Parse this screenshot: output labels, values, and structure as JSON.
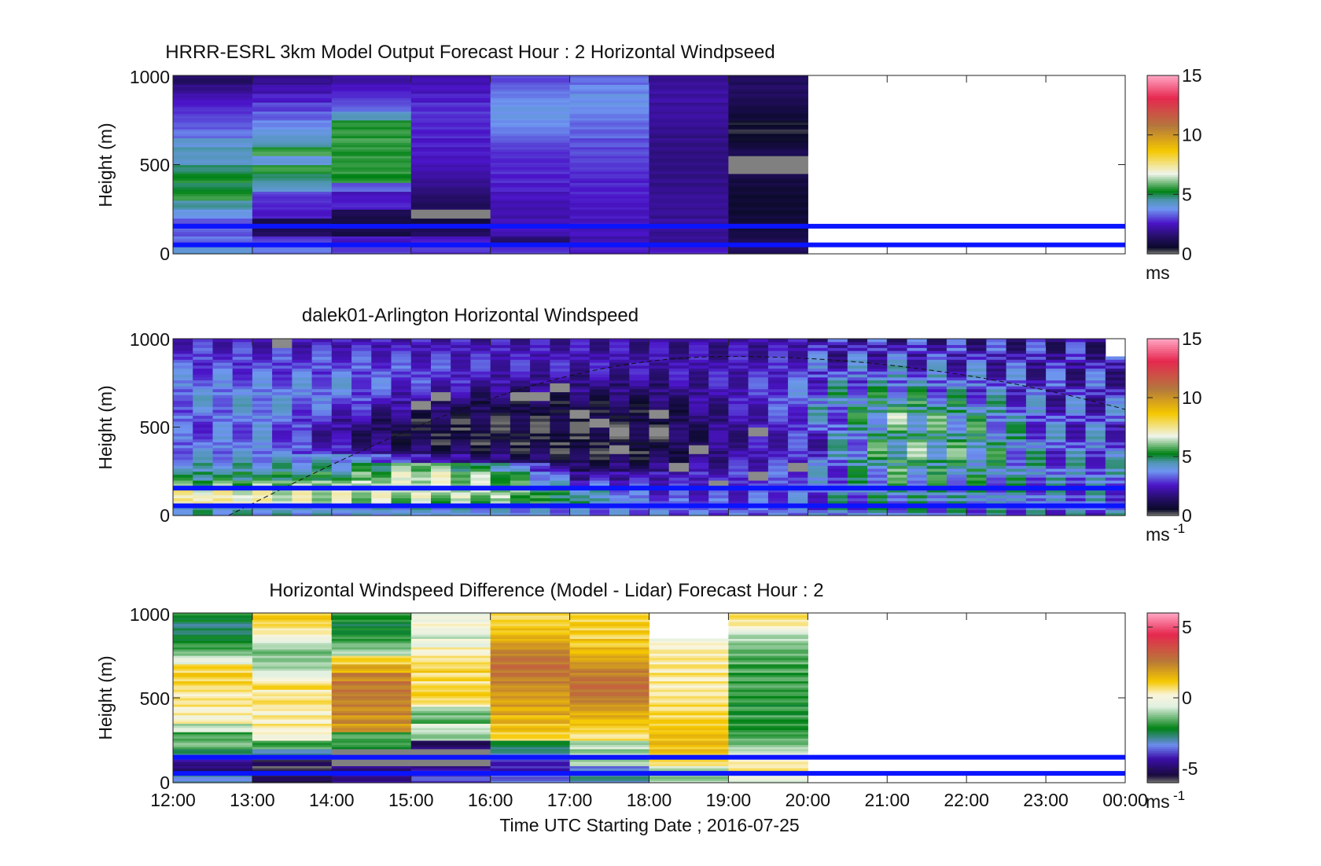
{
  "figure": {
    "xlabel": "Time UTC  Starting Date ; 2016-07-25",
    "x_ticks": [
      "12:00",
      "13:00",
      "14:00",
      "15:00",
      "16:00",
      "17:00",
      "18:00",
      "19:00",
      "20:00",
      "21:00",
      "22:00",
      "23:00",
      "00:00"
    ]
  },
  "chart_data": [
    {
      "type": "heatmap",
      "title": "HRRR-ESRL 3km Model Output   Forecast Hour : 2 Horizontal Windpseed",
      "ylabel": "Height (m)",
      "ylim": [
        0,
        1000
      ],
      "y_ticks": [
        "0",
        "500",
        "1000"
      ],
      "colorbar": {
        "min": 0,
        "max": 15,
        "ticks": [
          "0",
          "5",
          "10",
          "15"
        ],
        "unit": "ms",
        "unit_sup": ""
      },
      "x_hours": [
        12,
        13,
        14,
        15,
        16,
        17,
        18,
        19
      ],
      "bin_width_hours": 1,
      "height_bins_m": [
        0,
        50,
        100,
        150,
        200,
        250,
        300,
        350,
        400,
        450,
        500,
        550,
        600,
        650,
        700,
        750,
        800,
        850,
        900,
        950,
        1000
      ],
      "values": [
        [
          4.2,
          3.4,
          3.0,
          2.8,
          2.9,
          2.5,
          2.6,
          1.2
        ],
        [
          3.4,
          2.9,
          2.5,
          2.5,
          1.5,
          2.2,
          2.0,
          1.0
        ],
        [
          3.2,
          1.2,
          1.0,
          1.2,
          2.4,
          2.4,
          2.0,
          0.8
        ],
        [
          3.0,
          1.1,
          0.8,
          0.9,
          2.3,
          2.5,
          2.0,
          0.8
        ],
        [
          3.8,
          2.6,
          1.0,
          -1.0,
          2.2,
          2.5,
          1.9,
          0.7
        ],
        [
          4.5,
          2.8,
          2.6,
          1.3,
          2.2,
          2.6,
          1.9,
          0.7
        ],
        [
          5.5,
          2.9,
          2.4,
          1.5,
          2.4,
          2.7,
          1.9,
          0.7
        ],
        [
          5.0,
          4.3,
          3.2,
          1.8,
          2.6,
          2.7,
          1.8,
          0.8
        ],
        [
          5.4,
          4.7,
          5.4,
          2.0,
          2.7,
          2.7,
          1.8,
          0.9
        ],
        [
          4.9,
          5.5,
          5.6,
          2.2,
          2.8,
          2.8,
          1.8,
          -1.0
        ],
        [
          4.3,
          3.9,
          5.6,
          2.4,
          2.8,
          2.9,
          1.8,
          -1.0
        ],
        [
          4.4,
          5.6,
          5.5,
          2.5,
          2.9,
          3.0,
          1.8,
          1.0
        ],
        [
          4.1,
          4.4,
          5.6,
          2.6,
          3.1,
          3.1,
          1.8,
          0.6
        ],
        [
          3.4,
          4.1,
          5.5,
          2.7,
          3.4,
          3.3,
          1.8,
          0.4
        ],
        [
          3.1,
          3.7,
          5.4,
          2.8,
          3.6,
          3.4,
          1.9,
          0.5
        ],
        [
          2.9,
          3.3,
          4.3,
          2.9,
          3.8,
          3.6,
          2.0,
          0.8
        ],
        [
          2.7,
          3.0,
          3.2,
          2.8,
          3.8,
          3.8,
          2.0,
          1.0
        ],
        [
          2.4,
          2.6,
          2.9,
          2.6,
          3.6,
          3.8,
          2.1,
          1.2
        ],
        [
          1.9,
          2.2,
          2.6,
          2.4,
          3.4,
          3.6,
          2.1,
          1.3
        ],
        [
          1.4,
          1.8,
          2.2,
          2.2,
          3.1,
          3.3,
          2.0,
          1.2
        ]
      ],
      "note_values": "values[row][col]: row = height bin from ground up, col = hour; -1 = missing (grey)",
      "overlay_lines_m": [
        155,
        50
      ]
    },
    {
      "type": "heatmap",
      "title": "dalek01-Arlington  Horizontal Windspeed",
      "ylabel": "Height (m)",
      "ylim": [
        0,
        1000
      ],
      "y_ticks": [
        "0",
        "500",
        "1000"
      ],
      "colorbar": {
        "min": 0,
        "max": 15,
        "ticks": [
          "0",
          "5",
          "10",
          "15"
        ],
        "unit": "ms",
        "unit_sup": "-1"
      },
      "x_start_hour": 12,
      "x_end_hour": 23.8,
      "bin_width_hours": 0.25,
      "height_bins_m": [
        0,
        50,
        100,
        150,
        200,
        250,
        300,
        350,
        400,
        450,
        500,
        550,
        600,
        650,
        700,
        750,
        800,
        850,
        900,
        950,
        1000
      ],
      "profile_hours": [
        12,
        13,
        14,
        15,
        16,
        17,
        18,
        19,
        20,
        21,
        22,
        23
      ],
      "profiles": [
        [
          4.5,
          7.5,
          7.2,
          5.5,
          4.8,
          4.2,
          3.8,
          3.6,
          3.3,
          3.1,
          3.0,
          3.2,
          3.5,
          3.8,
          3.6,
          3.4,
          3.2,
          3.0,
          2.8,
          2.6
        ],
        [
          4.2,
          7.0,
          6.8,
          6.0,
          5.0,
          4.3,
          3.9,
          3.7,
          3.6,
          3.5,
          3.6,
          3.8,
          4.0,
          3.8,
          3.5,
          3.3,
          3.1,
          2.9,
          2.7,
          2.5
        ],
        [
          4.0,
          6.4,
          6.6,
          6.2,
          5.2,
          4.4,
          4.0,
          2.4,
          2.0,
          1.8,
          2.2,
          2.6,
          3.0,
          3.4,
          3.6,
          3.5,
          3.2,
          3.0,
          2.8,
          2.5
        ],
        [
          4.1,
          6.0,
          6.5,
          6.6,
          6.8,
          6.2,
          2.4,
          1.2,
          0.8,
          0.7,
          0.8,
          1.2,
          1.6,
          2.2,
          2.6,
          2.9,
          3.0,
          2.8,
          2.6,
          2.4
        ],
        [
          3.9,
          5.8,
          6.2,
          6.0,
          5.8,
          4.5,
          1.5,
          0.9,
          0.6,
          0.5,
          0.6,
          0.8,
          1.0,
          1.4,
          1.8,
          2.2,
          2.5,
          2.6,
          2.5,
          2.3
        ],
        [
          3.5,
          4.8,
          4.5,
          3.2,
          2.2,
          1.2,
          0.8,
          0.6,
          0.5,
          0.5,
          0.6,
          0.7,
          0.9,
          1.2,
          1.6,
          2.0,
          2.3,
          2.4,
          2.3,
          2.2
        ],
        [
          3.4,
          3.2,
          2.8,
          2.6,
          2.4,
          1.5,
          1.0,
          0.8,
          0.7,
          0.7,
          0.8,
          0.9,
          1.1,
          1.4,
          1.7,
          2.0,
          2.2,
          2.2,
          2.1,
          2.0
        ],
        [
          3.2,
          3.0,
          2.8,
          2.8,
          2.7,
          2.5,
          2.3,
          2.1,
          2.0,
          2.0,
          2.1,
          2.2,
          2.3,
          2.4,
          2.5,
          2.5,
          2.4,
          2.3,
          2.2,
          2.1
        ],
        [
          3.6,
          3.6,
          3.5,
          3.4,
          3.3,
          3.2,
          3.1,
          3.0,
          3.0,
          3.1,
          3.2,
          3.4,
          3.6,
          3.8,
          3.6,
          3.3,
          3.0,
          2.8,
          2.6,
          2.4
        ],
        [
          4.0,
          4.2,
          4.3,
          4.6,
          4.8,
          5.0,
          5.4,
          5.5,
          5.2,
          5.0,
          5.3,
          5.6,
          5.0,
          4.6,
          4.2,
          3.8,
          3.4,
          3.1,
          2.8,
          2.5
        ],
        [
          3.8,
          4.0,
          4.1,
          4.2,
          4.4,
          4.6,
          4.8,
          4.9,
          4.8,
          4.7,
          4.6,
          4.4,
          4.1,
          3.8,
          3.5,
          3.2,
          3.0,
          2.8,
          2.6,
          2.4
        ],
        [
          3.5,
          3.6,
          3.6,
          3.6,
          3.7,
          3.6,
          3.5,
          3.4,
          3.3,
          3.2,
          3.1,
          3.0,
          2.9,
          2.8,
          2.7,
          2.6,
          2.5,
          2.4,
          2.3,
          2.2
        ]
      ],
      "missing_cells": [
        [
          13.25,
          950
        ],
        [
          15.0,
          600
        ],
        [
          16.25,
          650
        ],
        [
          16.5,
          650
        ],
        [
          17.0,
          550
        ],
        [
          17.25,
          500
        ],
        [
          17.5,
          450
        ],
        [
          17.5,
          350
        ],
        [
          18.0,
          450
        ],
        [
          18.0,
          550
        ],
        [
          18.25,
          250
        ],
        [
          18.5,
          350
        ],
        [
          18.75,
          150
        ],
        [
          19.25,
          450
        ],
        [
          19.75,
          250
        ],
        [
          19.25,
          200
        ],
        [
          16.75,
          700
        ],
        [
          15.25,
          650
        ]
      ],
      "dashed_curve": {
        "start_hour": 12.7,
        "peak_hour": 19.0,
        "peak_m": 900,
        "end_hour": 24.0,
        "end_m": 600
      },
      "overlay_lines_m": [
        155,
        55
      ]
    },
    {
      "type": "heatmap",
      "title": "Horizontal Windspeed Difference (Model - Lidar) Forecast Hour : 2",
      "ylabel": "Height (m)",
      "ylim": [
        0,
        1000
      ],
      "y_ticks": [
        "0",
        "500",
        "1000"
      ],
      "colorbar": {
        "min": -6,
        "max": 6,
        "ticks": [
          "-5",
          "0",
          "5"
        ],
        "unit": "ms",
        "unit_sup": "-1"
      },
      "x_hours": [
        12,
        13,
        14,
        15,
        16,
        17,
        18,
        19
      ],
      "bin_width_hours": 1,
      "height_bins_m": [
        0,
        50,
        100,
        150,
        200,
        250,
        300,
        350,
        400,
        450,
        500,
        550,
        600,
        650,
        700,
        750,
        800,
        850,
        900,
        950,
        1000
      ],
      "values": [
        [
          -3.0,
          -5.5,
          -4.5,
          -4.0,
          -3.5,
          -3.0,
          -1.0,
          -0.5
        ],
        [
          -5.0,
          -5.8,
          -4.8,
          -4.5,
          -4.2,
          -3.5,
          -0.8,
          0.5
        ],
        [
          -4.5,
          -5.5,
          -9.0,
          -9.0,
          -4.0,
          -1.2,
          1.0,
          0.2
        ],
        [
          -2.8,
          -2.8,
          -9.0,
          -9.0,
          -3.0,
          -1.0,
          1.2,
          -0.6
        ],
        [
          -1.5,
          -1.6,
          -2.0,
          -5.0,
          -2.5,
          -0.8,
          1.3,
          -1.2
        ],
        [
          -1.8,
          0.2,
          -1.8,
          -1.0,
          0.8,
          0.8,
          1.2,
          -1.5
        ],
        [
          -0.8,
          0.5,
          2.0,
          -0.5,
          1.2,
          1.2,
          1.0,
          -1.8
        ],
        [
          0.2,
          0.4,
          2.2,
          -1.5,
          1.5,
          1.5,
          0.9,
          -1.8
        ],
        [
          0.4,
          0.2,
          2.4,
          -1.3,
          1.8,
          1.8,
          0.8,
          -1.9
        ],
        [
          0.8,
          0.6,
          2.6,
          0.5,
          2.0,
          2.2,
          0.8,
          -2.0
        ],
        [
          0.6,
          0.3,
          2.8,
          0.9,
          2.2,
          2.6,
          0.7,
          -2.0
        ],
        [
          0.9,
          0.8,
          2.7,
          0.7,
          2.4,
          2.8,
          0.6,
          -1.8
        ],
        [
          1.0,
          -0.2,
          2.4,
          0.8,
          2.6,
          2.6,
          0.6,
          -1.8
        ],
        [
          0.8,
          -0.8,
          1.6,
          1.0,
          2.8,
          2.4,
          0.5,
          -1.7
        ],
        [
          -0.6,
          -1.0,
          0.8,
          0.8,
          2.6,
          2.0,
          0.4,
          -1.5
        ],
        [
          -1.6,
          -1.2,
          -1.2,
          0.4,
          2.2,
          1.6,
          0.3,
          -1.3
        ],
        [
          -2.0,
          -0.6,
          -1.6,
          -0.2,
          1.8,
          1.2,
          0.0,
          -1.0
        ],
        [
          -2.4,
          0.2,
          -2.0,
          -0.6,
          1.4,
          1.0,
          -99,
          -0.8
        ],
        [
          -2.6,
          0.6,
          -2.2,
          0.0,
          1.2,
          1.0,
          -99,
          0.3
        ],
        [
          -2.0,
          1.0,
          -1.8,
          -0.4,
          1.0,
          0.8,
          -99,
          0.6
        ]
      ],
      "note_values": "-9 = missing (grey); -99 = no data (blank)",
      "overlay_lines_m": [
        150,
        55
      ]
    }
  ]
}
